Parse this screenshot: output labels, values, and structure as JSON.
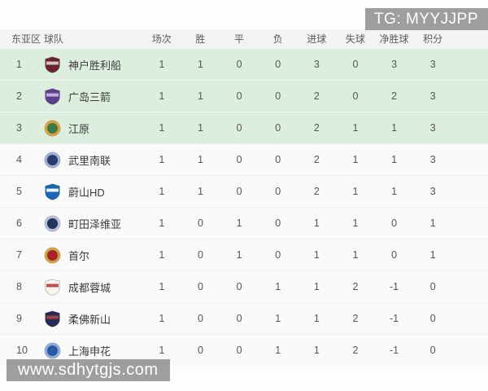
{
  "watermarks": {
    "top_right": "TG: MYYJJPP",
    "bottom_left": "www.sdhytgjs.com"
  },
  "colors": {
    "highlight_green": "#dceede",
    "header_bg": "#f3f3f3",
    "row_bg": "#fafafa",
    "watermark_bg": "#9e9e9e"
  },
  "table": {
    "columns": [
      "东亚区",
      "球队",
      "场次",
      "胜",
      "平",
      "负",
      "进球",
      "失球",
      "净胜球",
      "积分"
    ],
    "rows": [
      {
        "rank": "1",
        "team": "神户胜利船",
        "highlight": true,
        "logo": {
          "icon": "vissel-kobe-crest-icon",
          "shape": "shield",
          "colors": [
            "#6d2230",
            "#ded8d0"
          ]
        },
        "stats": [
          "1",
          "1",
          "0",
          "0",
          "3",
          "0",
          "3",
          "3"
        ]
      },
      {
        "rank": "2",
        "team": "广岛三箭",
        "highlight": true,
        "logo": {
          "icon": "sanfrecce-hiroshima-crest-icon",
          "shape": "shield",
          "colors": [
            "#5f3d93",
            "#cbbce0"
          ]
        },
        "stats": [
          "1",
          "1",
          "0",
          "0",
          "2",
          "0",
          "2",
          "3"
        ]
      },
      {
        "rank": "3",
        "team": "江原",
        "highlight": true,
        "logo": {
          "icon": "gangwon-crest-icon",
          "shape": "circle",
          "colors": [
            "#3a7d44",
            "#e5a23c"
          ]
        },
        "stats": [
          "1",
          "1",
          "0",
          "0",
          "2",
          "1",
          "1",
          "3"
        ]
      },
      {
        "rank": "4",
        "team": "武里南联",
        "highlight": false,
        "logo": {
          "icon": "buriram-united-crest-icon",
          "shape": "circle",
          "colors": [
            "#2a3c6e",
            "#9fb3d8"
          ]
        },
        "stats": [
          "1",
          "1",
          "0",
          "0",
          "2",
          "1",
          "1",
          "3"
        ]
      },
      {
        "rank": "5",
        "team": "蔚山HD",
        "highlight": false,
        "logo": {
          "icon": "ulsan-hd-crest-icon",
          "shape": "shield",
          "colors": [
            "#1767b3",
            "#ffffff"
          ]
        },
        "stats": [
          "1",
          "1",
          "0",
          "0",
          "2",
          "1",
          "1",
          "3"
        ]
      },
      {
        "rank": "6",
        "team": "町田泽维亚",
        "highlight": false,
        "logo": {
          "icon": "machida-zelvia-crest-icon",
          "shape": "circle",
          "colors": [
            "#24355f",
            "#b9c3d6"
          ]
        },
        "stats": [
          "1",
          "0",
          "1",
          "0",
          "1",
          "1",
          "0",
          "1"
        ]
      },
      {
        "rank": "7",
        "team": "首尔",
        "highlight": false,
        "logo": {
          "icon": "fc-seoul-crest-icon",
          "shape": "circle",
          "colors": [
            "#a8242b",
            "#d2a63e"
          ]
        },
        "stats": [
          "1",
          "0",
          "1",
          "0",
          "1",
          "1",
          "0",
          "1"
        ]
      },
      {
        "rank": "8",
        "team": "成都蓉城",
        "highlight": false,
        "logo": {
          "icon": "chengdu-rongcheng-crest-icon",
          "shape": "shield",
          "colors": [
            "#fbf5f3",
            "#c0393b"
          ]
        },
        "stats": [
          "1",
          "0",
          "0",
          "1",
          "1",
          "2",
          "-1",
          "0"
        ]
      },
      {
        "rank": "9",
        "team": "柔佛新山",
        "highlight": false,
        "logo": {
          "icon": "johor-darul-tazim-crest-icon",
          "shape": "shield",
          "colors": [
            "#232c54",
            "#b6413e"
          ]
        },
        "stats": [
          "1",
          "0",
          "0",
          "1",
          "1",
          "2",
          "-1",
          "0"
        ]
      },
      {
        "rank": "10",
        "team": "上海申花",
        "highlight": false,
        "logo": {
          "icon": "shanghai-shenhua-crest-icon",
          "shape": "circle",
          "colors": [
            "#2b59a8",
            "#8fb0dd"
          ]
        },
        "stats": [
          "1",
          "0",
          "0",
          "1",
          "1",
          "2",
          "-1",
          "0"
        ]
      }
    ]
  }
}
